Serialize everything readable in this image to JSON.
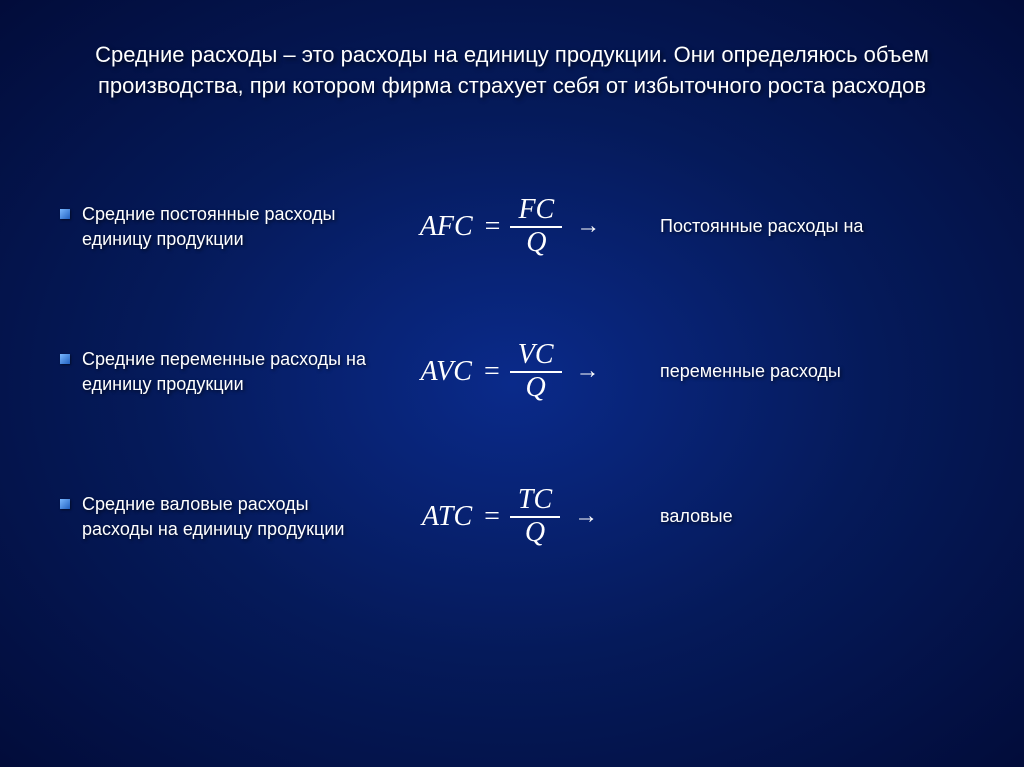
{
  "title": "Средние расходы – это расходы на единицу продукции. Они определяюсь объем производства, при котором фирма страхует себя от избыточного роста расходов",
  "rows": [
    {
      "bullet": "Средние постоянные расходы единицу продукции",
      "lhs": "AFC",
      "num": "FC",
      "den": "Q",
      "rlabel": "Постоянные расходы на"
    },
    {
      "bullet": "Средние переменные расходы на единицу продукции",
      "lhs": "AVC",
      "num": "VC",
      "den": "Q",
      "rlabel": "переменные расходы"
    },
    {
      "bullet": "Средние валовые расходы расходы на единицу продукции",
      "lhs": "ATC",
      "num": "TC",
      "den": "Q",
      "rlabel": "валовые"
    }
  ],
  "style": {
    "background_gradient": [
      "#0a2a8a",
      "#051a5a",
      "#020c3a"
    ],
    "text_color": "#ffffff",
    "title_fontsize": 22,
    "body_fontsize": 18,
    "formula_fontsize": 28,
    "bullet_color": "#5a9ae0",
    "text_shadow": "2px 2px 4px rgba(0,0,0,0.6)"
  }
}
